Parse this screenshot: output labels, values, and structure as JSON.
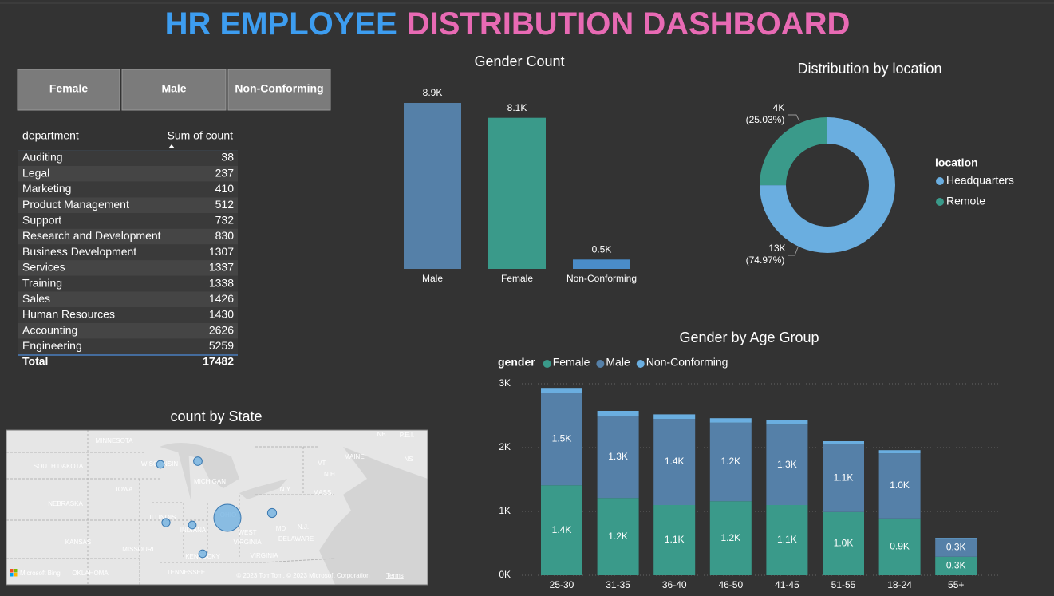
{
  "title": [
    "HR EMPLOYEE",
    "DISTRIBUTION DASHBOARD"
  ],
  "title_colors": [
    "#3d9df0",
    "#e86ab4"
  ],
  "slicer": [
    "Female",
    "Male",
    "Non-Conforming"
  ],
  "table": {
    "columns": [
      "department",
      "Sum of count"
    ],
    "rows": [
      [
        "Auditing",
        38
      ],
      [
        "Legal",
        237
      ],
      [
        "Marketing",
        410
      ],
      [
        "Product Management",
        512
      ],
      [
        "Support",
        732
      ],
      [
        "Research and Development",
        830
      ],
      [
        "Business Development",
        1307
      ],
      [
        "Services",
        1337
      ],
      [
        "Training",
        1338
      ],
      [
        "Sales",
        1426
      ],
      [
        "Human Resources",
        1430
      ],
      [
        "Accounting",
        2626
      ],
      [
        "Engineering",
        5259
      ]
    ],
    "total": [
      "Total",
      17482
    ]
  },
  "chart_data": [
    {
      "type": "bar",
      "title": "Gender Count",
      "categories": [
        "Male",
        "Female",
        "Non-Conforming"
      ],
      "values": [
        8900,
        8100,
        500
      ],
      "value_labels": [
        "8.9K",
        "8.1K",
        "0.5K"
      ],
      "colors": [
        "#5580a8",
        "#3a9a8a",
        "#4a8cc8"
      ]
    },
    {
      "type": "donut",
      "title": "Distribution by location",
      "legend_title": "location",
      "legend": "right",
      "categories": [
        "Headquarters",
        "Remote"
      ],
      "values": [
        74.97,
        25.03
      ],
      "value_labels": [
        "(74.97%)",
        "(25.03%)"
      ],
      "count_labels": [
        "13K",
        "4K"
      ],
      "colors": [
        "#6aaee0",
        "#3a9a8a"
      ]
    },
    {
      "type": "stacked_bar",
      "title": "Gender by Age Group",
      "legend_title": "gender",
      "legend": "top-left",
      "categories": [
        "25-30",
        "31-35",
        "36-40",
        "46-50",
        "41-45",
        "51-55",
        "18-24",
        "55+"
      ],
      "series": [
        {
          "name": "Female",
          "color": "#3a9a8a",
          "values": [
            1410,
            1210,
            1100,
            1160,
            1100,
            990,
            890,
            290
          ],
          "value_labels": [
            "1.4K",
            "1.2K",
            "1.1K",
            "1.2K",
            "1.1K",
            "1.0K",
            "0.9K",
            "0.3K"
          ]
        },
        {
          "name": "Male",
          "color": "#5580a8",
          "values": [
            1450,
            1290,
            1350,
            1230,
            1260,
            1060,
            1020,
            290
          ],
          "value_labels": [
            "1.5K",
            "1.3K",
            "1.4K",
            "1.2K",
            "1.3K",
            "1.1K",
            "1.0K",
            "0.3K"
          ]
        },
        {
          "name": "Non-Conforming",
          "color": "#6aaee0",
          "values": [
            75,
            75,
            70,
            70,
            65,
            50,
            50,
            7
          ]
        }
      ],
      "ylim": [
        0,
        3000
      ],
      "yticks": [
        {
          "value": 0,
          "label": "0K"
        },
        {
          "value": 1000,
          "label": "1K"
        },
        {
          "value": 2000,
          "label": "2K"
        },
        {
          "value": 3000,
          "label": "3K"
        }
      ],
      "grid": true
    },
    {
      "type": "bubble_map",
      "title": "count by State",
      "values": [
        900,
        1100,
        1000,
        900,
        11000,
        900,
        1200
      ],
      "color": "#6aaee0",
      "map_labels": [
        "MINNESOTA",
        "SOUTH DAKOTA",
        "WISCONSIN",
        "MICHIGAN",
        "IOWA",
        "NEBRASKA",
        "ILLINOIS",
        "INDIANA",
        "OHIO",
        "KANSAS",
        "MISSOURI",
        "KENTUCKY",
        "WEST",
        "VIRGINIA",
        "VIRGINIA",
        "TENNESSEE",
        "OKLAHOMA",
        "MAINE",
        "VT.",
        "N.H.",
        "MASS.",
        "N.Y.",
        "NB",
        "P.E.I.",
        "NS",
        "MD",
        "N.J.",
        "DELAWARE"
      ],
      "attribution": "© 2023 TomTom, © 2023 Microsoft Corporation",
      "terms": "Terms",
      "logo": "Microsoft Bing"
    }
  ]
}
